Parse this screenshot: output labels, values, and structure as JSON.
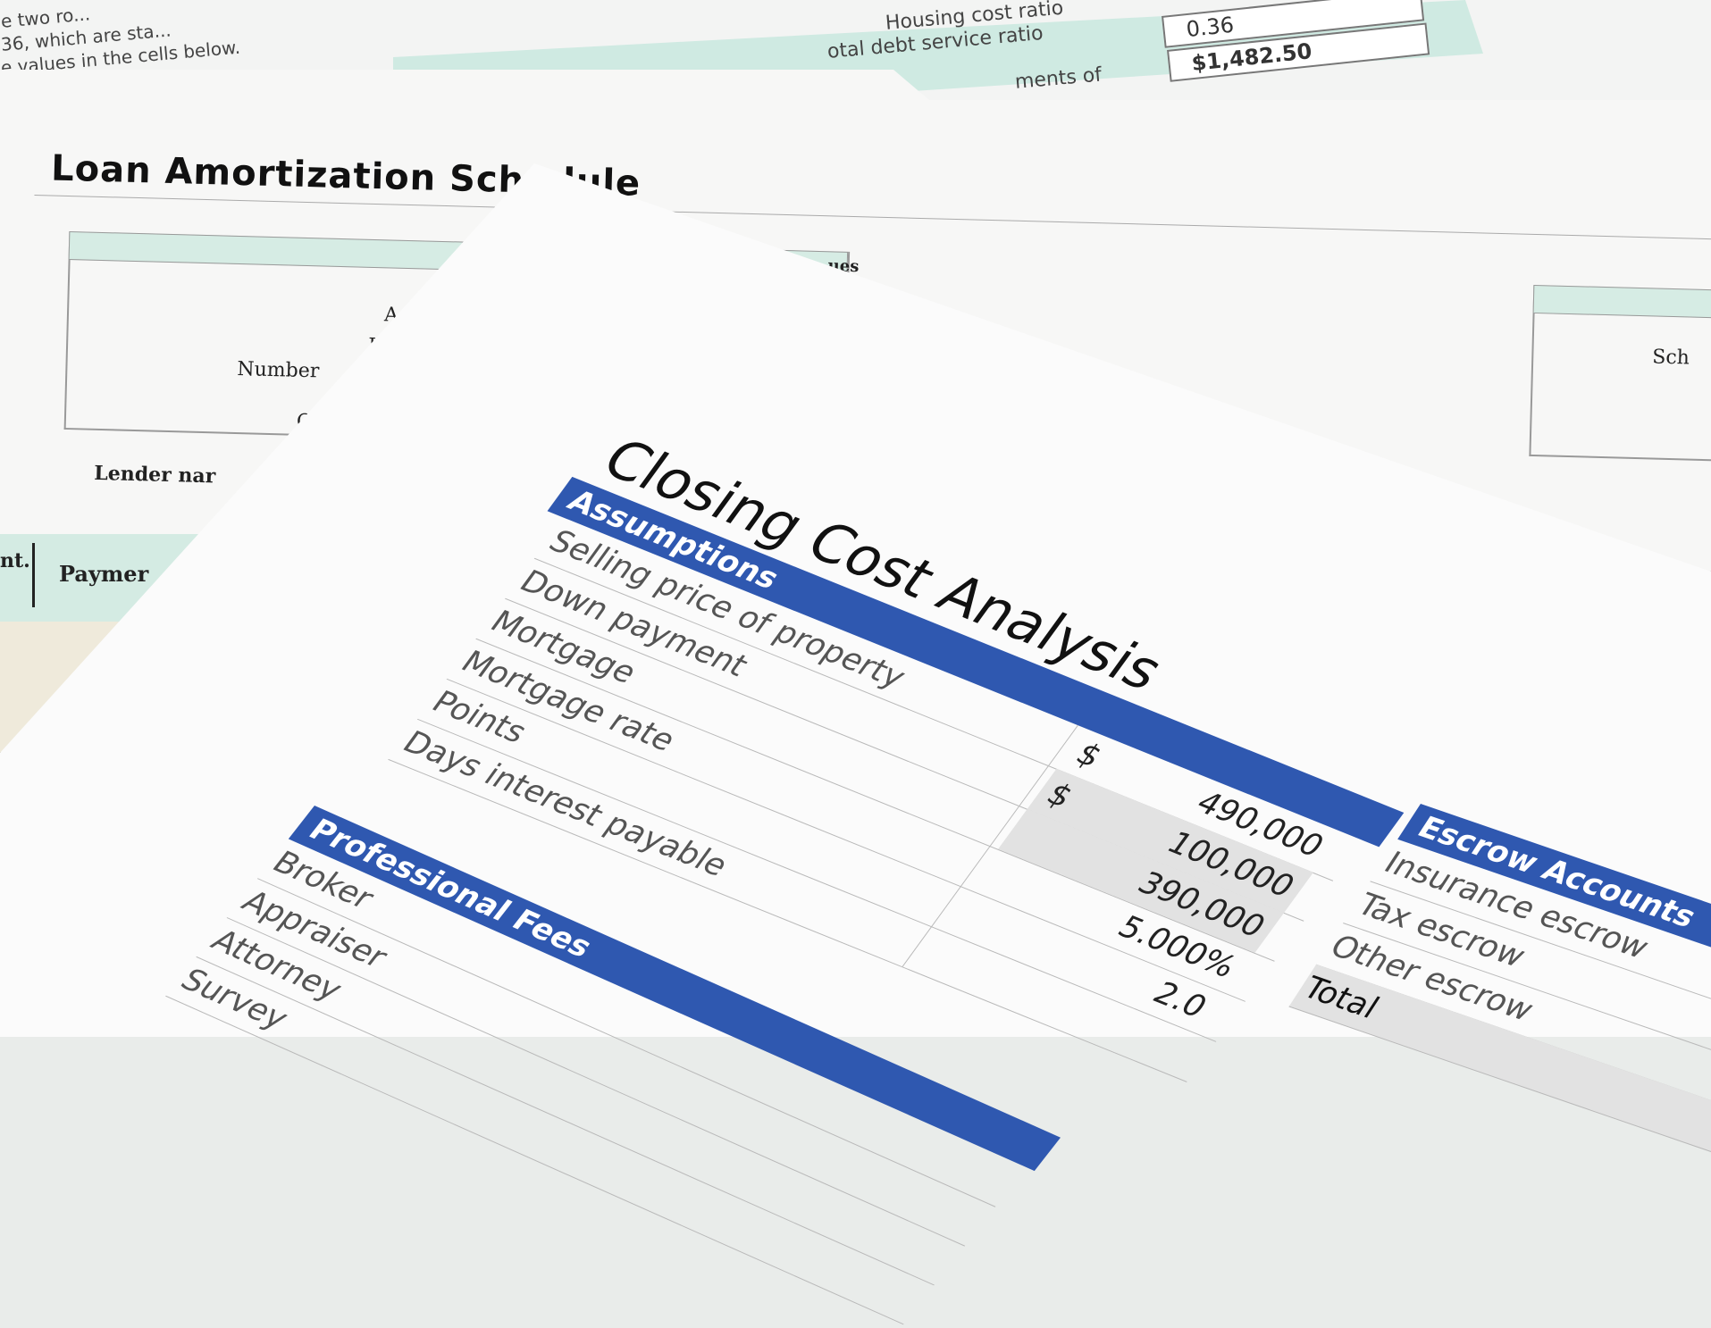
{
  "back_sheet": {
    "instructions": [
      "e two ro...",
      "36, which are sta...",
      "e values in the cells below."
    ],
    "labels": [
      "Housing cost ratio",
      "otal debt service ratio",
      "ments of"
    ],
    "values": [
      "0.36",
      "$1,482.50"
    ]
  },
  "middle_sheet": {
    "title": "Loan Amortization Schedule",
    "partial_labels": [
      "A",
      "L",
      "Number",
      "C",
      "Lender nar",
      "ues",
      "Sch"
    ],
    "band_labels": [
      "nt.",
      "Paymer"
    ]
  },
  "front_sheet": {
    "title": "Closing Cost Analysis",
    "assumptions": {
      "header": "Assumptions",
      "rows": [
        {
          "label": "Selling price of property",
          "currency": "$",
          "value": "490,000"
        },
        {
          "label": "Down payment",
          "currency": "$",
          "value": "100,000"
        },
        {
          "label": "Mortgage",
          "currency": "",
          "value": "390,000"
        },
        {
          "label": "Mortgage rate",
          "currency": "",
          "value": "5.000%"
        },
        {
          "label": "Points",
          "currency": "",
          "value": "2.0"
        },
        {
          "label": "Days interest payable",
          "currency": "",
          "value": ""
        }
      ]
    },
    "professional_fees": {
      "header": "Professional Fees",
      "rows": [
        "Broker",
        "Appraiser",
        "Attorney",
        "Survey"
      ]
    },
    "escrow_accounts": {
      "header": "Escrow Accounts",
      "rows": [
        "Insurance escrow",
        "Tax escrow",
        "Other escrow"
      ],
      "total_label": "Total"
    }
  },
  "colors": {
    "header_blue": "#2f58b0",
    "teal": "#cfeae2"
  }
}
